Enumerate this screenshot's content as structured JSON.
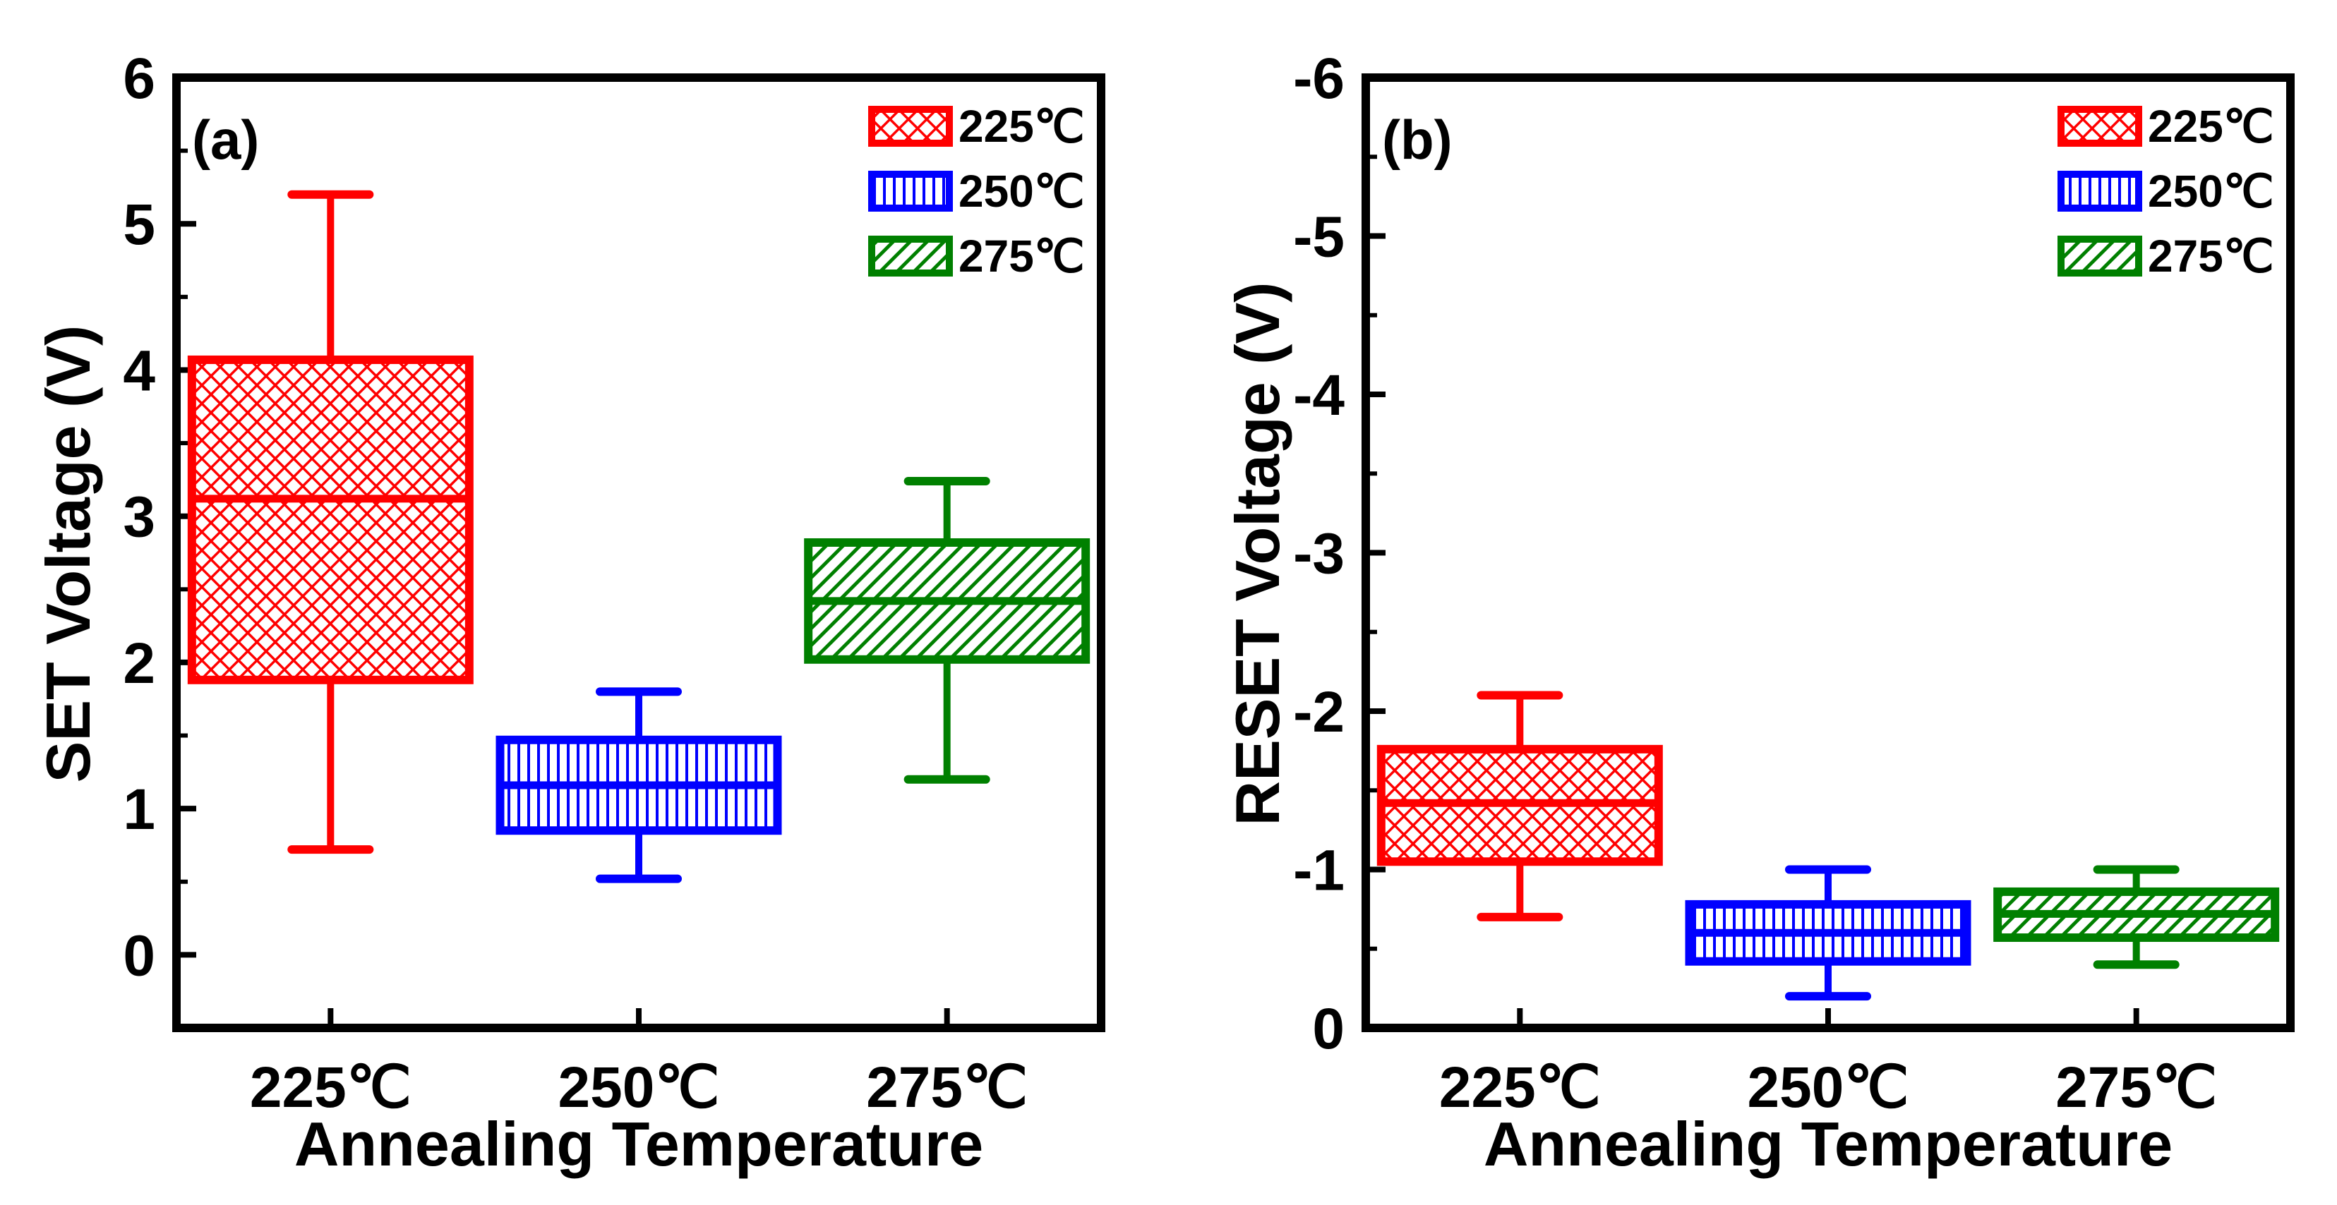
{
  "colors": {
    "225": "#ff0000",
    "250": "#0000ff",
    "275": "#008000",
    "axis": "#000000"
  },
  "chart_data": [
    {
      "panel": "(a)",
      "type": "box",
      "xlabel": "Annealing Temperature",
      "ylabel": "SET Voltage (V)",
      "categories": [
        "225℃",
        "250℃",
        "275℃"
      ],
      "ylim": [
        -0.5,
        6
      ],
      "y_inverted": false,
      "yticks": [
        0,
        1,
        2,
        3,
        4,
        5,
        6
      ],
      "ytick_labels": [
        "0",
        "1",
        "2",
        "3",
        "4",
        "5",
        "6"
      ],
      "boxes": [
        {
          "category": "225℃",
          "whisker_low": 0.72,
          "q1": 1.88,
          "median": 3.12,
          "q3": 4.07,
          "whisker_high": 5.2
        },
        {
          "category": "250℃",
          "whisker_low": 0.52,
          "q1": 0.85,
          "median": 1.16,
          "q3": 1.47,
          "whisker_high": 1.8
        },
        {
          "category": "275℃",
          "whisker_low": 1.2,
          "q1": 2.02,
          "median": 2.42,
          "q3": 2.82,
          "whisker_high": 3.24
        }
      ],
      "legend": [
        "225℃",
        "250℃",
        "275℃"
      ],
      "legend_position": "top-right"
    },
    {
      "panel": "(b)",
      "type": "box",
      "xlabel": "Annealing Temperature",
      "ylabel": "RESET Voltage (V)",
      "categories": [
        "225℃",
        "250℃",
        "275℃"
      ],
      "ylim": [
        0,
        6
      ],
      "y_inverted": true,
      "yticks": [
        0,
        1,
        2,
        3,
        4,
        5,
        6
      ],
      "ytick_labels": [
        "0",
        "-1",
        "-2",
        "-3",
        "-4",
        "-5",
        "-6"
      ],
      "boxes": [
        {
          "category": "225℃",
          "whisker_low": 0.7,
          "q1": 1.05,
          "median": 1.42,
          "q3": 1.76,
          "whisker_high": 2.1
        },
        {
          "category": "250℃",
          "whisker_low": 0.2,
          "q1": 0.42,
          "median": 0.6,
          "q3": 0.78,
          "whisker_high": 1.0
        },
        {
          "category": "275℃",
          "whisker_low": 0.4,
          "q1": 0.57,
          "median": 0.72,
          "q3": 0.86,
          "whisker_high": 1.0
        }
      ],
      "legend": [
        "225℃",
        "250℃",
        "275℃"
      ],
      "legend_position": "top-right"
    }
  ]
}
